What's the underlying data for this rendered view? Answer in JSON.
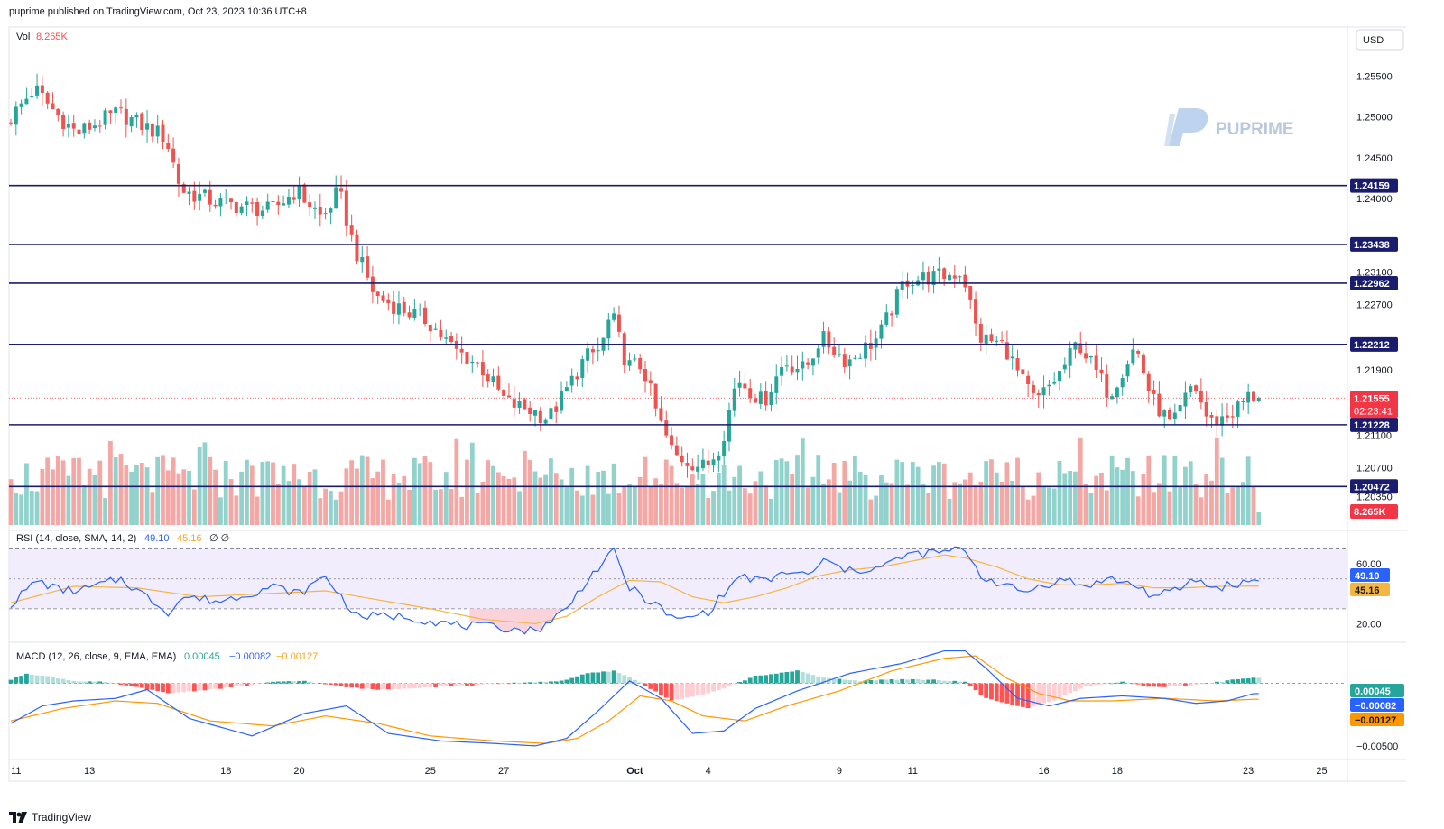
{
  "header": {
    "published": "puprime published on TradingView.com, Oct 23, 2023 10:36 UTC+8"
  },
  "watermark": "PUPRIME",
  "currency": "USD",
  "footer": {
    "brand": "TradingView"
  },
  "legends": {
    "vol": {
      "label": "Vol",
      "value": "8.265K"
    },
    "rsi": {
      "label": "RSI (14, close, SMA, 14, 2)",
      "value": "49.10",
      "ma": "45.16",
      "extra": "∅ ∅"
    },
    "macd": {
      "label": "MACD (12, 26, close, 9, EMA, EMA)",
      "hist": "0.00045",
      "macd": "−0.00082",
      "signal": "−0.00127"
    }
  },
  "colors": {
    "up": "#26a69a",
    "down": "#ef5350",
    "level": "#1a1d6e",
    "rsi": "#2962ff",
    "rsi_ma": "#f5b541",
    "macd": "#2962ff",
    "signal": "#ff9800",
    "current": "#f23645"
  },
  "price_axis_ticks": [
    "1.25500",
    "1.25000",
    "1.24500",
    "1.24000",
    "1.23100",
    "1.22700",
    "1.21900",
    "1.21100",
    "1.20700",
    "1.20350"
  ],
  "rsi_axis_ticks": [
    "60.00",
    "20.00"
  ],
  "macd_axis_ticks": [
    "−0.00500"
  ],
  "chart_data": {
    "type": "candlestick",
    "title": "",
    "y_range": [
      1.2,
      1.261
    ],
    "levels": [
      1.24159,
      1.23438,
      1.22962,
      1.22212,
      1.21228,
      1.20472
    ],
    "level_labels": [
      "1.24159",
      "1.23438",
      "1.22962",
      "1.22212",
      "1.21228",
      "1.20472"
    ],
    "current_price": "1.21555",
    "countdown": "02:23:41",
    "volume_label": "8.265K",
    "x_ticks": [
      {
        "label": "11",
        "i": 1
      },
      {
        "label": "13",
        "i": 15
      },
      {
        "label": "18",
        "i": 41
      },
      {
        "label": "20",
        "i": 55
      },
      {
        "label": "25",
        "i": 80
      },
      {
        "label": "27",
        "i": 94
      },
      {
        "label": "Oct",
        "i": 119
      },
      {
        "label": "4",
        "i": 133
      },
      {
        "label": "9",
        "i": 158
      },
      {
        "label": "11",
        "i": 172
      },
      {
        "label": "16",
        "i": 197
      },
      {
        "label": "18",
        "i": 211
      },
      {
        "label": "23",
        "i": 236
      },
      {
        "label": "25",
        "i": 250
      }
    ],
    "waypoints": [
      [
        0,
        1.2495
      ],
      [
        5,
        1.2535
      ],
      [
        9,
        1.2505
      ],
      [
        13,
        1.248
      ],
      [
        21,
        1.2505
      ],
      [
        30,
        1.2475
      ],
      [
        33,
        1.241
      ],
      [
        40,
        1.2395
      ],
      [
        50,
        1.2385
      ],
      [
        55,
        1.241
      ],
      [
        60,
        1.2375
      ],
      [
        63,
        1.241
      ],
      [
        66,
        1.234
      ],
      [
        70,
        1.228
      ],
      [
        75,
        1.2265
      ],
      [
        80,
        1.225
      ],
      [
        85,
        1.2215
      ],
      [
        90,
        1.2195
      ],
      [
        95,
        1.215
      ],
      [
        100,
        1.214
      ],
      [
        103,
        1.213
      ],
      [
        106,
        1.216
      ],
      [
        110,
        1.2205
      ],
      [
        113,
        1.2215
      ],
      [
        115,
        1.226
      ],
      [
        118,
        1.2195
      ],
      [
        121,
        1.2195
      ],
      [
        124,
        1.213
      ],
      [
        127,
        1.2085
      ],
      [
        133,
        1.207
      ],
      [
        136,
        1.21
      ],
      [
        139,
        1.218
      ],
      [
        144,
        1.215
      ],
      [
        148,
        1.22
      ],
      [
        152,
        1.219
      ],
      [
        155,
        1.223
      ],
      [
        160,
        1.22
      ],
      [
        166,
        1.223
      ],
      [
        171,
        1.23
      ],
      [
        178,
        1.2305
      ],
      [
        182,
        1.231
      ],
      [
        185,
        1.223
      ],
      [
        190,
        1.222
      ],
      [
        193,
        1.218
      ],
      [
        196,
        1.215
      ],
      [
        201,
        1.219
      ],
      [
        204,
        1.2225
      ],
      [
        210,
        1.216
      ],
      [
        215,
        1.222
      ],
      [
        218,
        1.2155
      ],
      [
        222,
        1.212
      ],
      [
        226,
        1.2175
      ],
      [
        229,
        1.2125
      ],
      [
        233,
        1.2135
      ],
      [
        237,
        1.216
      ],
      [
        238,
        1.2155
      ]
    ],
    "rsi": {
      "y_range": [
        10,
        80
      ],
      "upper": 70,
      "lower": 30,
      "mid": 50,
      "waypoints": [
        [
          0,
          33
        ],
        [
          5,
          49
        ],
        [
          9,
          43
        ],
        [
          13,
          42
        ],
        [
          21,
          50
        ],
        [
          30,
          28
        ],
        [
          33,
          38
        ],
        [
          40,
          35
        ],
        [
          50,
          45
        ],
        [
          55,
          40
        ],
        [
          60,
          52
        ],
        [
          63,
          38
        ],
        [
          66,
          25
        ],
        [
          75,
          25
        ],
        [
          85,
          19
        ],
        [
          95,
          17
        ],
        [
          100,
          15
        ],
        [
          106,
          30
        ],
        [
          110,
          50
        ],
        [
          115,
          68
        ],
        [
          118,
          44
        ],
        [
          124,
          30
        ],
        [
          127,
          22
        ],
        [
          133,
          28
        ],
        [
          139,
          52
        ],
        [
          144,
          48
        ],
        [
          148,
          55
        ],
        [
          152,
          52
        ],
        [
          155,
          62
        ],
        [
          160,
          55
        ],
        [
          166,
          58
        ],
        [
          171,
          66
        ],
        [
          178,
          68
        ],
        [
          182,
          70
        ],
        [
          185,
          52
        ],
        [
          190,
          45
        ],
        [
          193,
          41
        ],
        [
          196,
          45
        ],
        [
          201,
          50
        ],
        [
          204,
          45
        ],
        [
          210,
          50
        ],
        [
          215,
          45
        ],
        [
          218,
          38
        ],
        [
          222,
          42
        ],
        [
          226,
          50
        ],
        [
          229,
          44
        ],
        [
          233,
          46
        ],
        [
          237,
          49.1
        ],
        [
          238,
          49.1
        ]
      ],
      "ma_waypoints": [
        [
          0,
          34
        ],
        [
          12,
          45
        ],
        [
          24,
          44
        ],
        [
          36,
          38
        ],
        [
          48,
          40
        ],
        [
          60,
          42
        ],
        [
          70,
          36
        ],
        [
          80,
          30
        ],
        [
          90,
          23
        ],
        [
          100,
          20
        ],
        [
          106,
          25
        ],
        [
          112,
          38
        ],
        [
          118,
          49
        ],
        [
          124,
          48
        ],
        [
          130,
          38
        ],
        [
          136,
          34
        ],
        [
          142,
          38
        ],
        [
          148,
          44
        ],
        [
          154,
          52
        ],
        [
          160,
          56
        ],
        [
          166,
          58
        ],
        [
          172,
          62
        ],
        [
          178,
          66
        ],
        [
          182,
          64
        ],
        [
          188,
          58
        ],
        [
          194,
          50
        ],
        [
          200,
          46
        ],
        [
          206,
          46
        ],
        [
          212,
          47
        ],
        [
          218,
          44
        ],
        [
          224,
          44
        ],
        [
          230,
          45
        ],
        [
          237,
          45.16
        ],
        [
          238,
          45.16
        ]
      ]
    },
    "macd": {
      "y_range": [
        -0.0058,
        0.003
      ],
      "hist_waypoints": [
        [
          0,
          0.0003
        ],
        [
          3,
          0.0008
        ],
        [
          8,
          0.0005
        ],
        [
          12,
          0.0002
        ],
        [
          18,
          0.0001
        ],
        [
          24,
          -0.0003
        ],
        [
          30,
          -0.0008
        ],
        [
          40,
          -0.0004
        ],
        [
          50,
          0.0001
        ],
        [
          56,
          0.0002
        ],
        [
          64,
          -0.0003
        ],
        [
          70,
          -0.0005
        ],
        [
          80,
          -0.0003
        ],
        [
          90,
          -0.0001
        ],
        [
          100,
          0.0001
        ],
        [
          105,
          0.0002
        ],
        [
          110,
          0.0008
        ],
        [
          115,
          0.001
        ],
        [
          119,
          0.0003
        ],
        [
          126,
          -0.0014
        ],
        [
          131,
          -0.001
        ],
        [
          136,
          -0.0004
        ],
        [
          142,
          0.0006
        ],
        [
          150,
          0.001
        ],
        [
          156,
          0.0004
        ],
        [
          162,
          0.0002
        ],
        [
          168,
          0.0003
        ],
        [
          176,
          0.0003
        ],
        [
          182,
          0.0001
        ],
        [
          186,
          -0.0012
        ],
        [
          194,
          -0.002
        ],
        [
          200,
          -0.0012
        ],
        [
          205,
          -0.0002
        ],
        [
          212,
          0.0001
        ],
        [
          218,
          -0.0003
        ],
        [
          224,
          -0.0002
        ],
        [
          230,
          0.0001
        ],
        [
          235,
          0.0004
        ],
        [
          237,
          0.00045
        ],
        [
          238,
          0.00045
        ]
      ],
      "macd_waypoints": [
        [
          0,
          -0.0032
        ],
        [
          6,
          -0.0018
        ],
        [
          12,
          -0.0014
        ],
        [
          20,
          -0.0012
        ],
        [
          26,
          -0.0005
        ],
        [
          34,
          -0.0028
        ],
        [
          46,
          -0.0042
        ],
        [
          56,
          -0.0024
        ],
        [
          64,
          -0.0018
        ],
        [
          72,
          -0.004
        ],
        [
          82,
          -0.0046
        ],
        [
          92,
          -0.0048
        ],
        [
          100,
          -0.005
        ],
        [
          106,
          -0.0044
        ],
        [
          112,
          -0.0022
        ],
        [
          118,
          0.0002
        ],
        [
          124,
          -0.0012
        ],
        [
          130,
          -0.004
        ],
        [
          136,
          -0.0038
        ],
        [
          142,
          -0.002
        ],
        [
          150,
          -0.0006
        ],
        [
          160,
          0.0008
        ],
        [
          170,
          0.0016
        ],
        [
          178,
          0.0026
        ],
        [
          182,
          0.0026
        ],
        [
          186,
          0.0012
        ],
        [
          192,
          -0.0012
        ],
        [
          198,
          -0.0018
        ],
        [
          204,
          -0.0012
        ],
        [
          212,
          -0.001
        ],
        [
          220,
          -0.0012
        ],
        [
          226,
          -0.0016
        ],
        [
          232,
          -0.0014
        ],
        [
          237,
          -0.00082
        ],
        [
          238,
          -0.00082
        ]
      ],
      "signal_waypoints": [
        [
          0,
          -0.003
        ],
        [
          10,
          -0.002
        ],
        [
          20,
          -0.0014
        ],
        [
          28,
          -0.0016
        ],
        [
          38,
          -0.003
        ],
        [
          50,
          -0.0034
        ],
        [
          60,
          -0.0026
        ],
        [
          70,
          -0.0032
        ],
        [
          80,
          -0.0042
        ],
        [
          92,
          -0.0046
        ],
        [
          102,
          -0.0048
        ],
        [
          108,
          -0.0044
        ],
        [
          114,
          -0.003
        ],
        [
          120,
          -0.001
        ],
        [
          126,
          -0.0014
        ],
        [
          132,
          -0.0026
        ],
        [
          140,
          -0.003
        ],
        [
          148,
          -0.0018
        ],
        [
          158,
          -0.0006
        ],
        [
          168,
          0.001
        ],
        [
          178,
          0.002
        ],
        [
          184,
          0.0022
        ],
        [
          190,
          0.0004
        ],
        [
          196,
          -0.0008
        ],
        [
          202,
          -0.0014
        ],
        [
          210,
          -0.0014
        ],
        [
          220,
          -0.0012
        ],
        [
          230,
          -0.0014
        ],
        [
          237,
          -0.00127
        ],
        [
          238,
          -0.00127
        ]
      ]
    }
  }
}
